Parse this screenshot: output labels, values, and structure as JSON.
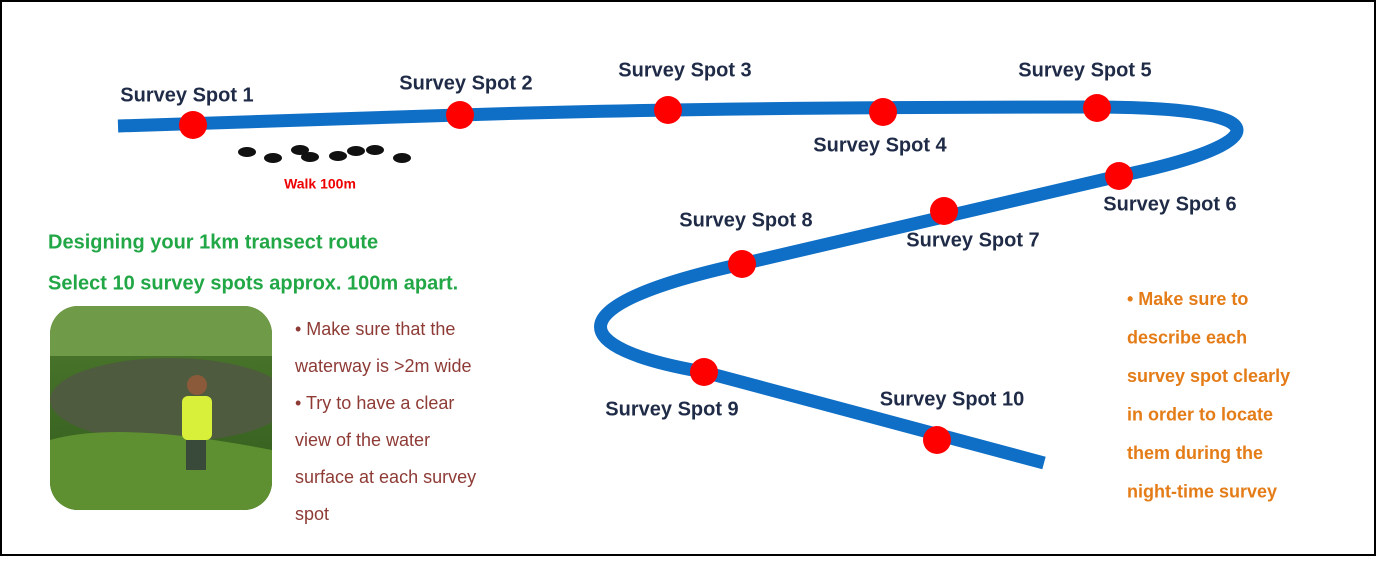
{
  "spots": [
    "Survey Spot 1",
    "Survey Spot 2",
    "Survey Spot 3",
    "Survey Spot 4",
    "Survey Spot 5",
    "Survey Spot 6",
    "Survey Spot 7",
    "Survey Spot 8",
    "Survey Spot 9",
    "Survey Spot 10"
  ],
  "walk_label": "Walk 100m",
  "heading": {
    "line1": "Designing your 1km transect route",
    "line2": "Select 10 survey spots approx. 100m apart."
  },
  "tips": [
    "• Make sure that the",
    "waterway is >2m wide",
    "• Try to have a clear",
    "view of the water",
    "surface at each survey",
    "spot"
  ],
  "note": [
    "• Make sure to",
    "describe each",
    "survey spot clearly",
    "in order to locate",
    "them during the",
    "night-time survey"
  ]
}
